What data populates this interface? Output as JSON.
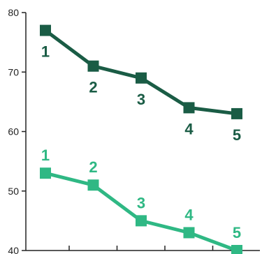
{
  "chart_data": {
    "type": "line",
    "title": "",
    "xlabel": "",
    "ylabel": "",
    "x": [
      1,
      2,
      3,
      4,
      5
    ],
    "ylim": [
      40,
      80
    ],
    "yticks": [
      40,
      50,
      60,
      70,
      80
    ],
    "ytick_labels": [
      "40",
      "50",
      "60",
      "70",
      "80"
    ],
    "grid": false,
    "legend": "none",
    "marker": "square",
    "series": [
      {
        "color": "#1a5c45",
        "values": [
          77,
          71,
          69,
          64,
          63
        ],
        "point_labels": [
          "1",
          "2",
          "3",
          "4",
          "5"
        ],
        "label_position": "below"
      },
      {
        "color": "#2fb884",
        "values": [
          53,
          51,
          45,
          43,
          40
        ],
        "point_labels": [
          "1",
          "2",
          "3",
          "4",
          "5"
        ],
        "label_position": "above"
      }
    ]
  }
}
